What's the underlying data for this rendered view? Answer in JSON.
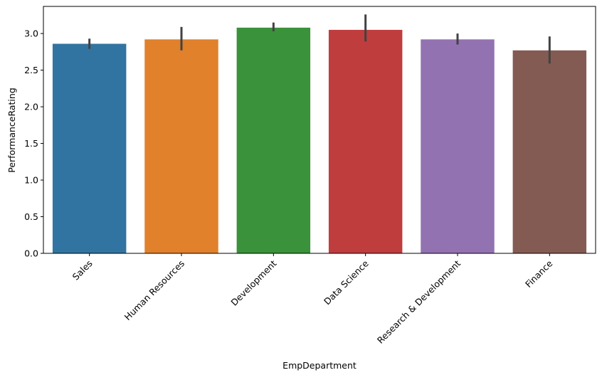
{
  "chart_data": {
    "type": "bar",
    "title": "",
    "xlabel": "EmpDepartment",
    "ylabel": "PerformanceRating",
    "categories": [
      "Sales",
      "Human Resources",
      "Development",
      "Data Science",
      "Research & Development",
      "Finance"
    ],
    "values": [
      2.86,
      2.92,
      3.08,
      3.05,
      2.92,
      2.77
    ],
    "error_low": [
      2.79,
      2.77,
      3.03,
      2.89,
      2.85,
      2.59
    ],
    "error_high": [
      2.93,
      3.09,
      3.15,
      3.26,
      3.0,
      2.96
    ],
    "colors": [
      "#3274a1",
      "#e1812c",
      "#3a923a",
      "#c03d3e",
      "#9372b2",
      "#845b53"
    ],
    "error_color": "#424242",
    "ylim": [
      0,
      3.37
    ],
    "yticks": [
      "0.0",
      "0.5",
      "1.0",
      "1.5",
      "2.0",
      "2.5",
      "3.0"
    ],
    "grid": false,
    "xtick_rotation": 45
  }
}
